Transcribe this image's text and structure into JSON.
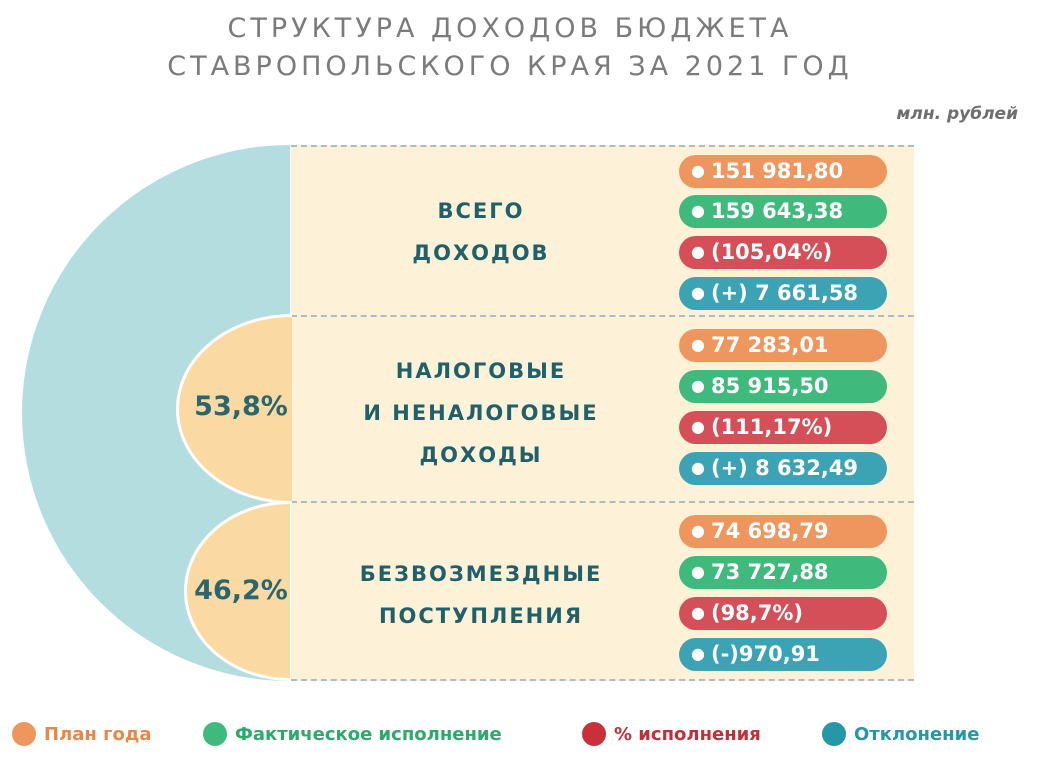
{
  "title": [
    "СТРУКТУРА ДОХОДОВ БЮДЖЕТА",
    "СТАВРОПОЛЬСКОГО КРАЯ ЗА 2021 ГОД"
  ],
  "units": "млн. рублей",
  "colors": {
    "plan": "#ef965e",
    "fact": "#3fba7c",
    "percent": "#d44f57",
    "deviation": "#3ba3b3",
    "total_semicircle": "#b4dde0",
    "part_semicircle": "#fbd9a2"
  },
  "chart_data": {
    "type": "table",
    "shares": [
      {
        "category": "НАЛОГОВЫЕ И НЕНАЛОГОВЫЕ ДОХОДЫ",
        "value": 53.8,
        "label": "53,8%"
      },
      {
        "category": "БЕЗВОЗМЕЗДНЫЕ ПОСТУПЛЕНИЯ",
        "value": 46.2,
        "label": "46,2%"
      }
    ],
    "rows": [
      {
        "label": "ВСЕГО\nДОХОДОВ",
        "plan": "151 981,80",
        "fact": "159 643,38",
        "percent": "(105,04%)",
        "deviation": "(+) 7 661,58"
      },
      {
        "label": "НАЛОГОВЫЕ\nИ  НЕНАЛОГОВЫЕ\nДОХОДЫ",
        "plan": "77 283,01",
        "fact": "85 915,50",
        "percent": "(111,17%)",
        "deviation": "(+) 8 632,49"
      },
      {
        "label": "БЕЗВОЗМЕЗДНЫЕ\nПОСТУПЛЕНИЯ",
        "plan": "74 698,79",
        "fact": "73 727,88",
        "percent": "(98,7%)",
        "deviation": "(-)970,91"
      }
    ],
    "legend": [
      {
        "name": "План года",
        "color": "#ef965e"
      },
      {
        "name": "Фактическое исполнение",
        "color": "#3fba7c"
      },
      {
        "name": "% исполнения",
        "color": "#c9303a"
      },
      {
        "name": "Отклонение",
        "color": "#2697a6"
      }
    ]
  }
}
